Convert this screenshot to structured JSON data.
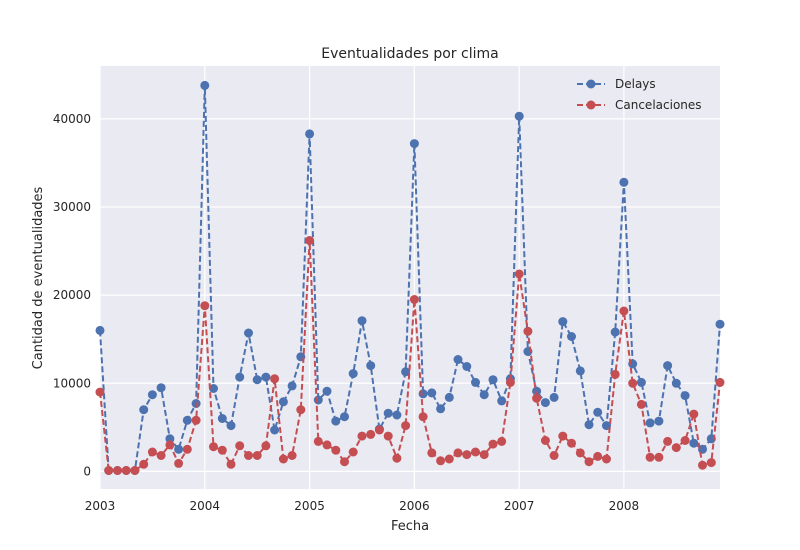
{
  "chart_data": {
    "type": "line",
    "title": "Eventualidades por clima",
    "xlabel": "Fecha",
    "ylabel": "Cantidad de eventualidades",
    "x_ticks": [
      "2003",
      "2004",
      "2005",
      "2006",
      "2007",
      "2008"
    ],
    "y_ticks": [
      "0",
      "10000",
      "20000",
      "30000",
      "40000"
    ],
    "ylim": [
      -2000,
      46000
    ],
    "xlim": [
      "2003-01",
      "2008-12"
    ],
    "grid": true,
    "legend_position": "top-right",
    "x": [
      "2003-01",
      "2003-02",
      "2003-03",
      "2003-04",
      "2003-05",
      "2003-06",
      "2003-07",
      "2003-08",
      "2003-09",
      "2003-10",
      "2003-11",
      "2003-12",
      "2004-01",
      "2004-02",
      "2004-03",
      "2004-04",
      "2004-05",
      "2004-06",
      "2004-07",
      "2004-08",
      "2004-09",
      "2004-10",
      "2004-11",
      "2004-12",
      "2005-01",
      "2005-02",
      "2005-03",
      "2005-04",
      "2005-05",
      "2005-06",
      "2005-07",
      "2005-08",
      "2005-09",
      "2005-10",
      "2005-11",
      "2005-12",
      "2006-01",
      "2006-02",
      "2006-03",
      "2006-04",
      "2006-05",
      "2006-06",
      "2006-07",
      "2006-08",
      "2006-09",
      "2006-10",
      "2006-11",
      "2006-12",
      "2007-01",
      "2007-02",
      "2007-03",
      "2007-04",
      "2007-05",
      "2007-06",
      "2007-07",
      "2007-08",
      "2007-09",
      "2007-10",
      "2007-11",
      "2007-12",
      "2008-01",
      "2008-02",
      "2008-03",
      "2008-04",
      "2008-05",
      "2008-06",
      "2008-07",
      "2008-08",
      "2008-09",
      "2008-10",
      "2008-11",
      "2008-12"
    ],
    "series": [
      {
        "name": "Delays",
        "color": "#4c72b0",
        "values": [
          16000,
          100,
          100,
          100,
          100,
          7000,
          8700,
          9500,
          3700,
          2500,
          5800,
          7700,
          43800,
          9400,
          6000,
          5200,
          10700,
          15700,
          10400,
          10700,
          4700,
          7900,
          9700,
          13000,
          38300,
          8100,
          9100,
          5700,
          6200,
          11100,
          17100,
          12000,
          4800,
          6600,
          6400,
          11300,
          37200,
          8800,
          8900,
          7100,
          8400,
          12700,
          11900,
          10100,
          8700,
          10400,
          8000,
          10500,
          40300,
          13600,
          9100,
          7800,
          8400,
          17000,
          15300,
          11400,
          5300,
          6700,
          5200,
          15800,
          32800,
          12200,
          10100,
          5500,
          5700,
          12000,
          10000,
          8600,
          3200,
          2500,
          3700,
          16700
        ]
      },
      {
        "name": "Cancelaciones",
        "color": "#c44e52",
        "values": [
          9000,
          100,
          100,
          100,
          100,
          800,
          2200,
          1800,
          3000,
          900,
          2500,
          5800,
          18800,
          2800,
          2400,
          800,
          2900,
          1800,
          1800,
          2900,
          10500,
          1400,
          1800,
          7000,
          26200,
          3400,
          3000,
          2400,
          1100,
          2200,
          4000,
          4200,
          4700,
          4000,
          1500,
          5200,
          19500,
          6200,
          2100,
          1200,
          1400,
          2100,
          1900,
          2200,
          1900,
          3100,
          3400,
          10100,
          22400,
          15900,
          8300,
          3500,
          1800,
          4000,
          3200,
          2100,
          1100,
          1700,
          1400,
          11000,
          18200,
          10000,
          7600,
          1600,
          1600,
          3400,
          2700,
          3500,
          6500,
          700,
          1000,
          10100
        ]
      }
    ]
  }
}
